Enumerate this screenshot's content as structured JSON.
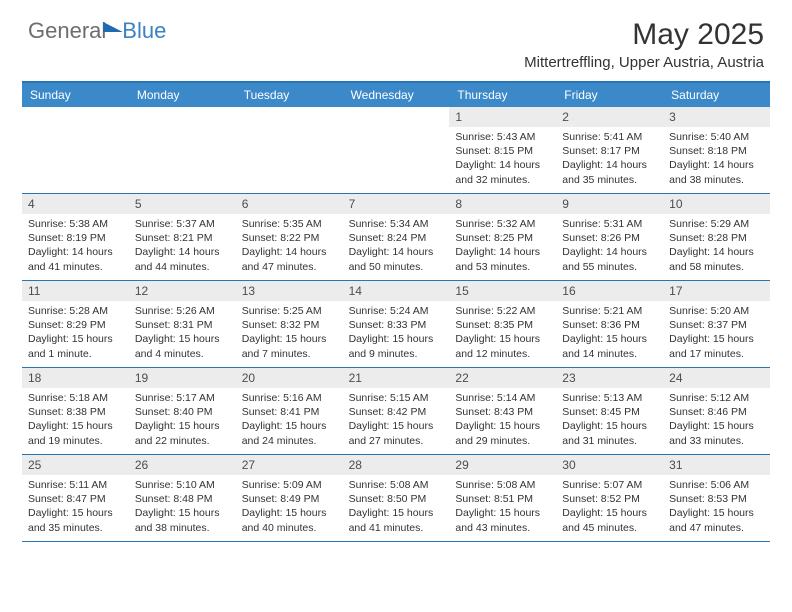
{
  "logo": {
    "part1": "General",
    "part2": "Blue"
  },
  "title": "May 2025",
  "location": "Mittertreffling, Upper Austria, Austria",
  "colors": {
    "header_bg": "#3b89c9",
    "border": "#2676b6",
    "daynum_bg": "#ececec",
    "text": "#333333",
    "logo_gray": "#6d6d6d",
    "logo_blue": "#3b82c4"
  },
  "daynames": [
    "Sunday",
    "Monday",
    "Tuesday",
    "Wednesday",
    "Thursday",
    "Friday",
    "Saturday"
  ],
  "weeks": [
    [
      {
        "empty": true
      },
      {
        "empty": true
      },
      {
        "empty": true
      },
      {
        "empty": true
      },
      {
        "num": "1",
        "sunrise": "Sunrise: 5:43 AM",
        "sunset": "Sunset: 8:15 PM",
        "day1": "Daylight: 14 hours",
        "day2": "and 32 minutes."
      },
      {
        "num": "2",
        "sunrise": "Sunrise: 5:41 AM",
        "sunset": "Sunset: 8:17 PM",
        "day1": "Daylight: 14 hours",
        "day2": "and 35 minutes."
      },
      {
        "num": "3",
        "sunrise": "Sunrise: 5:40 AM",
        "sunset": "Sunset: 8:18 PM",
        "day1": "Daylight: 14 hours",
        "day2": "and 38 minutes."
      }
    ],
    [
      {
        "num": "4",
        "sunrise": "Sunrise: 5:38 AM",
        "sunset": "Sunset: 8:19 PM",
        "day1": "Daylight: 14 hours",
        "day2": "and 41 minutes."
      },
      {
        "num": "5",
        "sunrise": "Sunrise: 5:37 AM",
        "sunset": "Sunset: 8:21 PM",
        "day1": "Daylight: 14 hours",
        "day2": "and 44 minutes."
      },
      {
        "num": "6",
        "sunrise": "Sunrise: 5:35 AM",
        "sunset": "Sunset: 8:22 PM",
        "day1": "Daylight: 14 hours",
        "day2": "and 47 minutes."
      },
      {
        "num": "7",
        "sunrise": "Sunrise: 5:34 AM",
        "sunset": "Sunset: 8:24 PM",
        "day1": "Daylight: 14 hours",
        "day2": "and 50 minutes."
      },
      {
        "num": "8",
        "sunrise": "Sunrise: 5:32 AM",
        "sunset": "Sunset: 8:25 PM",
        "day1": "Daylight: 14 hours",
        "day2": "and 53 minutes."
      },
      {
        "num": "9",
        "sunrise": "Sunrise: 5:31 AM",
        "sunset": "Sunset: 8:26 PM",
        "day1": "Daylight: 14 hours",
        "day2": "and 55 minutes."
      },
      {
        "num": "10",
        "sunrise": "Sunrise: 5:29 AM",
        "sunset": "Sunset: 8:28 PM",
        "day1": "Daylight: 14 hours",
        "day2": "and 58 minutes."
      }
    ],
    [
      {
        "num": "11",
        "sunrise": "Sunrise: 5:28 AM",
        "sunset": "Sunset: 8:29 PM",
        "day1": "Daylight: 15 hours",
        "day2": "and 1 minute."
      },
      {
        "num": "12",
        "sunrise": "Sunrise: 5:26 AM",
        "sunset": "Sunset: 8:31 PM",
        "day1": "Daylight: 15 hours",
        "day2": "and 4 minutes."
      },
      {
        "num": "13",
        "sunrise": "Sunrise: 5:25 AM",
        "sunset": "Sunset: 8:32 PM",
        "day1": "Daylight: 15 hours",
        "day2": "and 7 minutes."
      },
      {
        "num": "14",
        "sunrise": "Sunrise: 5:24 AM",
        "sunset": "Sunset: 8:33 PM",
        "day1": "Daylight: 15 hours",
        "day2": "and 9 minutes."
      },
      {
        "num": "15",
        "sunrise": "Sunrise: 5:22 AM",
        "sunset": "Sunset: 8:35 PM",
        "day1": "Daylight: 15 hours",
        "day2": "and 12 minutes."
      },
      {
        "num": "16",
        "sunrise": "Sunrise: 5:21 AM",
        "sunset": "Sunset: 8:36 PM",
        "day1": "Daylight: 15 hours",
        "day2": "and 14 minutes."
      },
      {
        "num": "17",
        "sunrise": "Sunrise: 5:20 AM",
        "sunset": "Sunset: 8:37 PM",
        "day1": "Daylight: 15 hours",
        "day2": "and 17 minutes."
      }
    ],
    [
      {
        "num": "18",
        "sunrise": "Sunrise: 5:18 AM",
        "sunset": "Sunset: 8:38 PM",
        "day1": "Daylight: 15 hours",
        "day2": "and 19 minutes."
      },
      {
        "num": "19",
        "sunrise": "Sunrise: 5:17 AM",
        "sunset": "Sunset: 8:40 PM",
        "day1": "Daylight: 15 hours",
        "day2": "and 22 minutes."
      },
      {
        "num": "20",
        "sunrise": "Sunrise: 5:16 AM",
        "sunset": "Sunset: 8:41 PM",
        "day1": "Daylight: 15 hours",
        "day2": "and 24 minutes."
      },
      {
        "num": "21",
        "sunrise": "Sunrise: 5:15 AM",
        "sunset": "Sunset: 8:42 PM",
        "day1": "Daylight: 15 hours",
        "day2": "and 27 minutes."
      },
      {
        "num": "22",
        "sunrise": "Sunrise: 5:14 AM",
        "sunset": "Sunset: 8:43 PM",
        "day1": "Daylight: 15 hours",
        "day2": "and 29 minutes."
      },
      {
        "num": "23",
        "sunrise": "Sunrise: 5:13 AM",
        "sunset": "Sunset: 8:45 PM",
        "day1": "Daylight: 15 hours",
        "day2": "and 31 minutes."
      },
      {
        "num": "24",
        "sunrise": "Sunrise: 5:12 AM",
        "sunset": "Sunset: 8:46 PM",
        "day1": "Daylight: 15 hours",
        "day2": "and 33 minutes."
      }
    ],
    [
      {
        "num": "25",
        "sunrise": "Sunrise: 5:11 AM",
        "sunset": "Sunset: 8:47 PM",
        "day1": "Daylight: 15 hours",
        "day2": "and 35 minutes."
      },
      {
        "num": "26",
        "sunrise": "Sunrise: 5:10 AM",
        "sunset": "Sunset: 8:48 PM",
        "day1": "Daylight: 15 hours",
        "day2": "and 38 minutes."
      },
      {
        "num": "27",
        "sunrise": "Sunrise: 5:09 AM",
        "sunset": "Sunset: 8:49 PM",
        "day1": "Daylight: 15 hours",
        "day2": "and 40 minutes."
      },
      {
        "num": "28",
        "sunrise": "Sunrise: 5:08 AM",
        "sunset": "Sunset: 8:50 PM",
        "day1": "Daylight: 15 hours",
        "day2": "and 41 minutes."
      },
      {
        "num": "29",
        "sunrise": "Sunrise: 5:08 AM",
        "sunset": "Sunset: 8:51 PM",
        "day1": "Daylight: 15 hours",
        "day2": "and 43 minutes."
      },
      {
        "num": "30",
        "sunrise": "Sunrise: 5:07 AM",
        "sunset": "Sunset: 8:52 PM",
        "day1": "Daylight: 15 hours",
        "day2": "and 45 minutes."
      },
      {
        "num": "31",
        "sunrise": "Sunrise: 5:06 AM",
        "sunset": "Sunset: 8:53 PM",
        "day1": "Daylight: 15 hours",
        "day2": "and 47 minutes."
      }
    ]
  ]
}
